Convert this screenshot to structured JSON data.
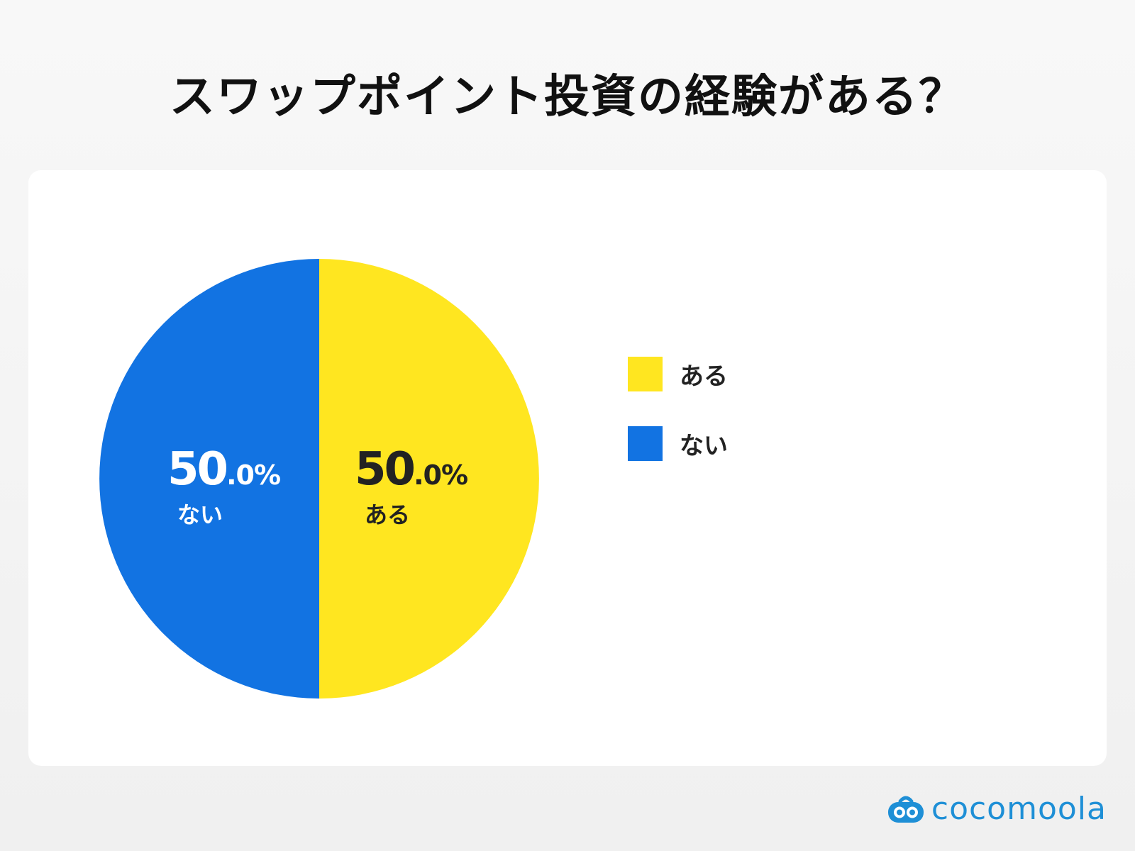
{
  "chart_data": {
    "type": "pie",
    "title": "スワップポイント投資の経験がある？",
    "slices": [
      {
        "label": "ある",
        "value": 50.0,
        "pct_main": "50",
        "pct_dec": ".0%",
        "color": "#FFE620",
        "text_color": "#222222"
      },
      {
        "label": "ない",
        "value": 50.0,
        "pct_main": "50",
        "pct_dec": ".0%",
        "color": "#1273E2",
        "text_color": "#FFFFFF"
      }
    ],
    "legend": {
      "placement": "right",
      "items": [
        "ある",
        "ない"
      ]
    }
  },
  "brand": {
    "name": "cocomoola",
    "color": "#1E8FD6",
    "icon": "cocomoola-logo-icon"
  }
}
